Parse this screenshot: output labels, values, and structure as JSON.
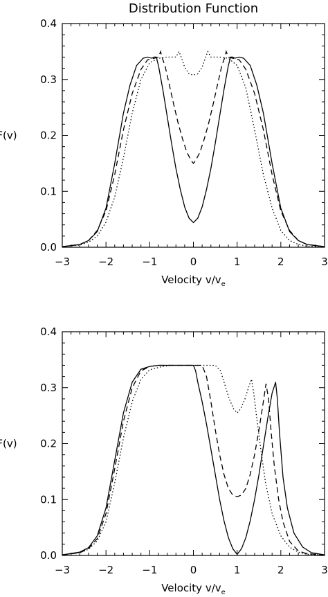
{
  "chart_data": [
    {
      "type": "line",
      "title": "Distribution Function",
      "xlabel": "Velocity v/v",
      "xlabel_subscript": "e",
      "ylabel": "F(v)",
      "xlim": [
        -3,
        3
      ],
      "ylim": [
        0,
        0.4
      ],
      "xticks": [
        "-3",
        "-2",
        "-1",
        "0",
        "1",
        "2",
        "3"
      ],
      "yticks": [
        "0.0",
        "0.1",
        "0.2",
        "0.3",
        "0.4"
      ],
      "grid": false,
      "series": [
        {
          "style": "solid",
          "x": [
            -3.0,
            -2.6,
            -2.4,
            -2.2,
            -2.0,
            -1.8,
            -1.6,
            -1.45,
            -1.3,
            -1.15,
            -1.05,
            -0.95,
            -0.9,
            -0.85,
            -0.8,
            -0.7,
            -0.6,
            -0.5,
            -0.4,
            -0.3,
            -0.2,
            -0.1,
            0.0,
            0.1,
            0.2,
            0.3,
            0.4,
            0.5,
            0.6,
            0.7,
            0.8,
            0.85,
            0.9,
            0.95,
            1.05,
            1.15,
            1.3,
            1.45,
            1.6,
            1.8,
            2.0,
            2.2,
            2.4,
            2.6,
            3.0
          ],
          "y": [
            0.001,
            0.005,
            0.012,
            0.028,
            0.07,
            0.15,
            0.24,
            0.29,
            0.325,
            0.338,
            0.34,
            0.338,
            0.34,
            0.34,
            0.325,
            0.282,
            0.234,
            0.186,
            0.141,
            0.103,
            0.072,
            0.052,
            0.044,
            0.052,
            0.072,
            0.103,
            0.141,
            0.186,
            0.234,
            0.282,
            0.325,
            0.34,
            0.34,
            0.338,
            0.34,
            0.338,
            0.325,
            0.29,
            0.24,
            0.15,
            0.07,
            0.028,
            0.012,
            0.005,
            0.001
          ]
        },
        {
          "style": "dashed",
          "x": [
            -3.0,
            -2.6,
            -2.4,
            -2.2,
            -2.0,
            -1.8,
            -1.6,
            -1.4,
            -1.2,
            -1.05,
            -0.9,
            -0.8,
            -0.75,
            -0.72,
            -0.65,
            -0.55,
            -0.45,
            -0.35,
            -0.25,
            -0.15,
            -0.05,
            0.0,
            0.05,
            0.15,
            0.25,
            0.35,
            0.45,
            0.55,
            0.65,
            0.72,
            0.75,
            0.8,
            0.9,
            1.05,
            1.2,
            1.4,
            1.6,
            1.8,
            2.0,
            2.2,
            2.4,
            2.6,
            3.0
          ],
          "y": [
            0.001,
            0.005,
            0.012,
            0.03,
            0.065,
            0.13,
            0.21,
            0.275,
            0.318,
            0.335,
            0.338,
            0.34,
            0.35,
            0.34,
            0.325,
            0.29,
            0.255,
            0.222,
            0.194,
            0.17,
            0.155,
            0.15,
            0.155,
            0.17,
            0.194,
            0.222,
            0.255,
            0.29,
            0.325,
            0.34,
            0.35,
            0.34,
            0.338,
            0.335,
            0.318,
            0.275,
            0.21,
            0.13,
            0.065,
            0.03,
            0.012,
            0.005,
            0.001
          ]
        },
        {
          "style": "dotted",
          "x": [
            -3.0,
            -2.6,
            -2.4,
            -2.2,
            -2.0,
            -1.8,
            -1.6,
            -1.4,
            -1.2,
            -1.0,
            -0.8,
            -0.6,
            -0.4,
            -0.33,
            -0.28,
            -0.2,
            -0.1,
            0.0,
            0.1,
            0.2,
            0.28,
            0.33,
            0.4,
            0.6,
            0.8,
            1.0,
            1.2,
            1.4,
            1.6,
            1.8,
            2.0,
            2.2,
            2.4,
            2.6,
            3.0
          ],
          "y": [
            0.001,
            0.004,
            0.009,
            0.02,
            0.045,
            0.09,
            0.16,
            0.24,
            0.3,
            0.33,
            0.338,
            0.34,
            0.34,
            0.35,
            0.34,
            0.322,
            0.31,
            0.308,
            0.31,
            0.322,
            0.34,
            0.35,
            0.34,
            0.34,
            0.338,
            0.325,
            0.285,
            0.21,
            0.13,
            0.07,
            0.03,
            0.012,
            0.005,
            0.002,
            0.001
          ]
        }
      ]
    },
    {
      "type": "line",
      "title": "",
      "xlabel": "Velocity v/v",
      "xlabel_subscript": "e",
      "ylabel": "F(v)",
      "xlim": [
        -3,
        3
      ],
      "ylim": [
        0,
        0.4
      ],
      "xticks": [
        "-3",
        "-2",
        "-1",
        "0",
        "1",
        "2",
        "3"
      ],
      "yticks": [
        "0.0",
        "0.1",
        "0.2",
        "0.3",
        "0.4"
      ],
      "grid": false,
      "series": [
        {
          "style": "solid",
          "x": [
            -3.0,
            -2.6,
            -2.4,
            -2.2,
            -2.0,
            -1.8,
            -1.6,
            -1.4,
            -1.2,
            -1.0,
            -0.8,
            -0.5,
            0.0,
            0.05,
            0.1,
            0.2,
            0.3,
            0.4,
            0.5,
            0.6,
            0.7,
            0.8,
            0.9,
            1.0,
            1.1,
            1.2,
            1.3,
            1.4,
            1.5,
            1.6,
            1.7,
            1.8,
            1.88,
            1.92,
            1.97,
            2.05,
            2.15,
            2.3,
            2.5,
            2.7,
            3.0
          ],
          "y": [
            0.001,
            0.006,
            0.014,
            0.035,
            0.085,
            0.17,
            0.255,
            0.31,
            0.333,
            0.338,
            0.34,
            0.34,
            0.34,
            0.33,
            0.31,
            0.275,
            0.235,
            0.19,
            0.145,
            0.1,
            0.062,
            0.032,
            0.012,
            0.002,
            0.012,
            0.032,
            0.062,
            0.1,
            0.145,
            0.195,
            0.245,
            0.29,
            0.31,
            0.28,
            0.22,
            0.14,
            0.085,
            0.04,
            0.015,
            0.005,
            0.001
          ]
        },
        {
          "style": "dashed",
          "x": [
            -3.0,
            -2.6,
            -2.4,
            -2.2,
            -2.0,
            -1.8,
            -1.6,
            -1.4,
            -1.2,
            -1.0,
            -0.8,
            -0.5,
            0.0,
            0.2,
            0.3,
            0.4,
            0.5,
            0.6,
            0.7,
            0.8,
            0.9,
            1.0,
            1.1,
            1.2,
            1.3,
            1.4,
            1.5,
            1.6,
            1.66,
            1.72,
            1.78,
            1.85,
            1.95,
            2.05,
            2.2,
            2.4,
            2.6,
            3.0
          ],
          "y": [
            0.001,
            0.005,
            0.012,
            0.03,
            0.075,
            0.155,
            0.24,
            0.3,
            0.33,
            0.338,
            0.34,
            0.34,
            0.34,
            0.34,
            0.32,
            0.275,
            0.225,
            0.18,
            0.145,
            0.12,
            0.108,
            0.105,
            0.108,
            0.12,
            0.145,
            0.18,
            0.225,
            0.275,
            0.307,
            0.28,
            0.22,
            0.16,
            0.1,
            0.06,
            0.025,
            0.008,
            0.003,
            0.001
          ]
        },
        {
          "style": "dotted",
          "x": [
            -3.0,
            -2.6,
            -2.4,
            -2.2,
            -2.0,
            -1.8,
            -1.6,
            -1.4,
            -1.2,
            -1.0,
            -0.7,
            -0.5,
            0.0,
            0.5,
            0.62,
            0.72,
            0.82,
            0.92,
            1.0,
            1.08,
            1.18,
            1.28,
            1.33,
            1.38,
            1.45,
            1.55,
            1.65,
            1.8,
            2.0,
            2.2,
            2.4,
            2.6,
            3.0
          ],
          "y": [
            0.001,
            0.005,
            0.011,
            0.026,
            0.06,
            0.13,
            0.21,
            0.275,
            0.315,
            0.332,
            0.338,
            0.34,
            0.34,
            0.34,
            0.33,
            0.305,
            0.28,
            0.262,
            0.255,
            0.262,
            0.28,
            0.305,
            0.315,
            0.29,
            0.245,
            0.185,
            0.13,
            0.075,
            0.035,
            0.015,
            0.006,
            0.002,
            0.001
          ]
        }
      ]
    }
  ]
}
